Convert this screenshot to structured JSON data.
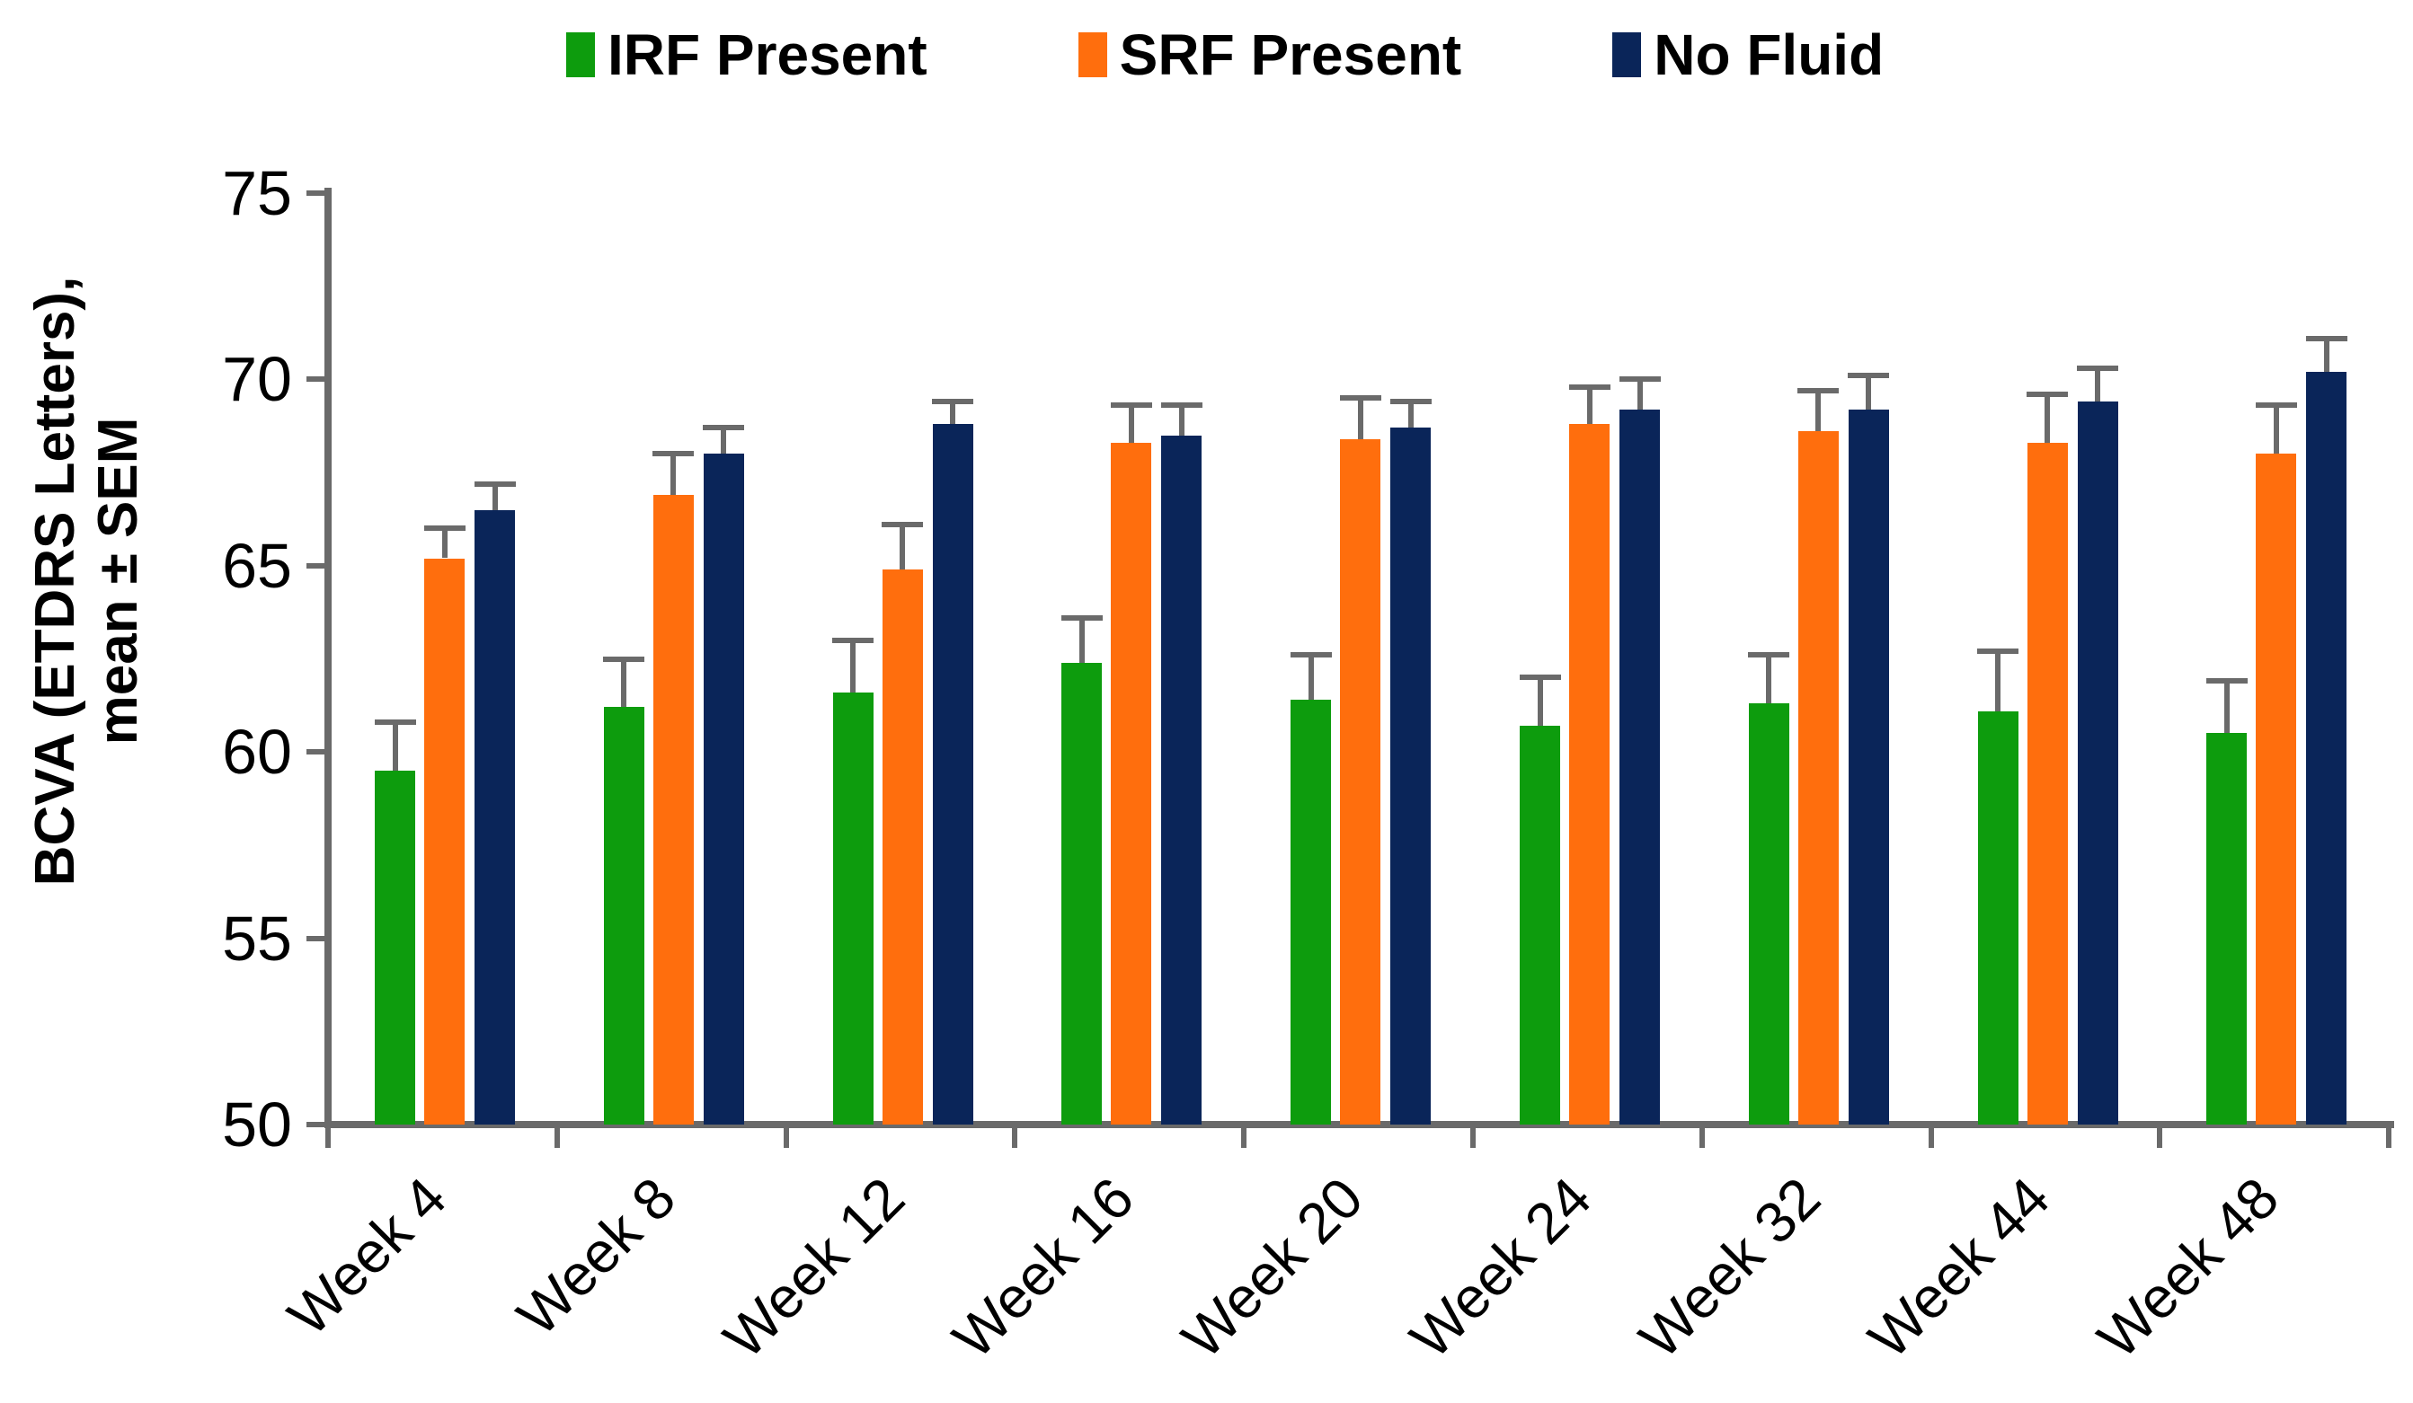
{
  "legend": {
    "items": [
      {
        "label": "IRF Present",
        "color": "#0d9c0d"
      },
      {
        "label": "SRF Present",
        "color": "#ff6e0d"
      },
      {
        "label": "No Fluid",
        "color": "#0a2559"
      }
    ]
  },
  "y_axis": {
    "title_line1": "BCVA (ETDRS Letters),",
    "title_line2": "mean ± SEM",
    "tick_labels": [
      "75",
      "70",
      "65",
      "60",
      "55",
      "50"
    ],
    "min": 50,
    "max": 75,
    "step": 5
  },
  "x_axis": {
    "categories": [
      "Week 4",
      "Week 8",
      "Week 12",
      "Week 16",
      "Week 20",
      "Week 24",
      "Week 32",
      "Week 44",
      "Week 48"
    ]
  },
  "chart_data": {
    "type": "bar",
    "subtype": "grouped-with-error-bars",
    "categories": [
      "Week 4",
      "Week 8",
      "Week 12",
      "Week 16",
      "Week 20",
      "Week 24",
      "Week 32",
      "Week 44",
      "Week 48"
    ],
    "series": [
      {
        "name": "IRF Present",
        "color": "#0d9c0d",
        "values": [
          59.5,
          61.2,
          61.6,
          62.4,
          61.4,
          60.7,
          61.3,
          61.1,
          60.5
        ],
        "sem": [
          1.3,
          1.3,
          1.4,
          1.2,
          1.2,
          1.3,
          1.3,
          1.6,
          1.4
        ]
      },
      {
        "name": "SRF Present",
        "color": "#ff6e0d",
        "values": [
          65.2,
          66.9,
          64.9,
          68.3,
          68.4,
          68.8,
          68.6,
          68.3,
          68.0
        ],
        "sem": [
          0.8,
          1.1,
          1.2,
          1.0,
          1.1,
          1.0,
          1.1,
          1.3,
          1.3
        ]
      },
      {
        "name": "No Fluid",
        "color": "#0a2559",
        "values": [
          66.5,
          68.0,
          68.8,
          68.5,
          68.7,
          69.2,
          69.2,
          69.4,
          70.2
        ],
        "sem": [
          0.7,
          0.7,
          0.6,
          0.8,
          0.7,
          0.8,
          0.9,
          0.9,
          0.9
        ]
      }
    ],
    "title": "",
    "xlabel": "",
    "ylabel": "BCVA (ETDRS Letters), mean ± SEM",
    "ylim": [
      50,
      75
    ],
    "ytick_step": 5,
    "grid": false,
    "legend_position": "top",
    "error_bars": "upper SEM only, gray caps"
  },
  "colors": {
    "axis": "#6a6a6a",
    "error_bar": "#6a6a6a",
    "text": "#000000",
    "background": "#ffffff"
  }
}
